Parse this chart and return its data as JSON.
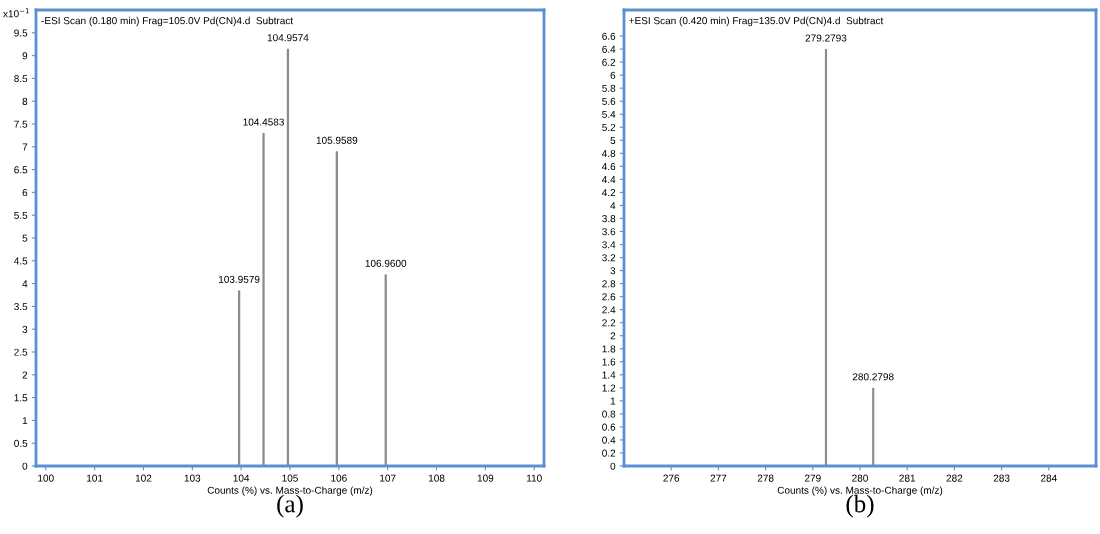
{
  "chart_data": [
    {
      "type": "bar",
      "title": "-ESI Scan (0.180 min) Frag=105.0V Pd(CN)4.d  Subtract",
      "xlabel": "Counts (%) vs. Mass-to-Charge (m/z)",
      "annotations": [
        "x10$^{−1}$",
        "(a)"
      ],
      "x": [
        103.9579,
        104.4583,
        104.9574,
        105.9589,
        106.96
      ],
      "series": [
        {
          "color": "#8c8c8c",
          "values": [
            3.85,
            7.3,
            9.15,
            6.9,
            4.2
          ]
        }
      ],
      "value_labels": [
        "103.9579",
        "104.4583",
        "104.9574",
        "105.9589",
        "106.9600"
      ],
      "xlim": [
        99.8,
        110.2
      ],
      "xticks": [
        100,
        101,
        102,
        103,
        104,
        105,
        106,
        107,
        108,
        109,
        110
      ],
      "ylim": [
        0,
        10
      ],
      "yticks": [
        0,
        0.5,
        1,
        1.5,
        2,
        2.5,
        3,
        3.5,
        4,
        4.5,
        5,
        5.5,
        6,
        6.5,
        7,
        7.5,
        8,
        8.5,
        9,
        9.5
      ],
      "grid": false
    },
    {
      "type": "bar",
      "title": "+ESI Scan (0.420 min) Frag=135.0V Pd(CN)4.d  Subtract",
      "xlabel": "Counts (%) vs. Mass-to-Charge (m/z)",
      "annotations": [
        "(b)"
      ],
      "x": [
        279.2793,
        280.2798
      ],
      "series": [
        {
          "color": "#8c8c8c",
          "values": [
            6.4,
            1.2
          ]
        }
      ],
      "value_labels": [
        "279.2793",
        "280.2798"
      ],
      "xlim": [
        275,
        285
      ],
      "xticks": [
        276,
        277,
        278,
        279,
        280,
        281,
        282,
        283,
        284
      ],
      "ylim": [
        0,
        7
      ],
      "yticks": [
        0,
        0.2,
        0.4,
        0.6,
        0.8,
        1,
        1.2,
        1.4,
        1.6,
        1.8,
        2,
        2.2,
        2.4,
        2.6,
        2.8,
        3,
        3.2,
        3.4,
        3.6,
        3.8,
        4,
        4.2,
        4.4,
        4.6,
        4.8,
        5,
        5.2,
        5.4,
        5.6,
        5.8,
        6,
        6.2,
        6.4,
        6.6
      ],
      "grid": false
    }
  ]
}
